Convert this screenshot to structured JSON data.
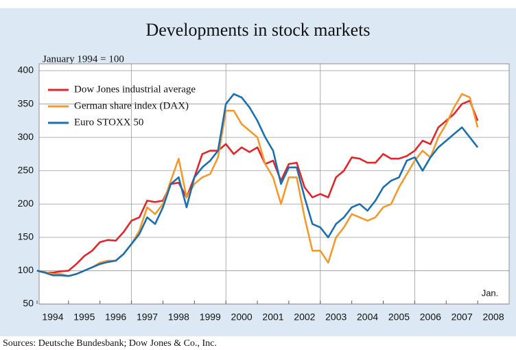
{
  "chart_data": {
    "type": "line",
    "title": "Developments in stock markets",
    "ylabel": "January 1994 = 100",
    "annotation": "Jan.",
    "source": "Sources: Deutsche Bundesbank; Dow Jones & Co., Inc.",
    "x": [
      1994,
      1994.25,
      1994.5,
      1994.75,
      1995,
      1995.25,
      1995.5,
      1995.75,
      1996,
      1996.25,
      1996.5,
      1996.75,
      1997,
      1997.25,
      1997.5,
      1997.75,
      1998,
      1998.25,
      1998.5,
      1998.75,
      1999,
      1999.25,
      1999.5,
      1999.75,
      2000,
      2000.25,
      2000.5,
      2000.75,
      2001,
      2001.25,
      2001.5,
      2001.75,
      2002,
      2002.25,
      2002.5,
      2002.75,
      2003,
      2003.25,
      2003.5,
      2003.75,
      2004,
      2004.25,
      2004.5,
      2004.75,
      2005,
      2005.25,
      2005.5,
      2005.75,
      2006,
      2006.25,
      2006.5,
      2006.75,
      2007,
      2007.25,
      2007.5,
      2007.75,
      2008
    ],
    "series": [
      {
        "name": "Dow Jones industrial average",
        "color": "#e0262b",
        "values": [
          100,
          97,
          97,
          99,
          100,
          110,
          122,
          130,
          143,
          146,
          145,
          158,
          175,
          180,
          205,
          203,
          205,
          230,
          232,
          210,
          240,
          275,
          280,
          280,
          290,
          275,
          285,
          278,
          285,
          260,
          265,
          235,
          260,
          262,
          225,
          210,
          215,
          210,
          240,
          250,
          270,
          268,
          262,
          262,
          275,
          268,
          268,
          272,
          280,
          295,
          290,
          315,
          325,
          335,
          350,
          355,
          325
        ]
      },
      {
        "name": "German share index (DAX)",
        "color": "#f29a2e",
        "values": [
          100,
          98,
          95,
          95,
          92,
          95,
          100,
          105,
          112,
          115,
          115,
          125,
          140,
          160,
          195,
          185,
          200,
          235,
          268,
          210,
          230,
          240,
          245,
          270,
          340,
          340,
          320,
          310,
          300,
          260,
          240,
          200,
          240,
          240,
          180,
          130,
          130,
          112,
          150,
          165,
          185,
          180,
          175,
          180,
          195,
          200,
          225,
          245,
          265,
          280,
          270,
          300,
          320,
          345,
          365,
          360,
          315
        ]
      },
      {
        "name": "Euro STOXX 50",
        "color": "#1a6fae",
        "values": [
          100,
          97,
          93,
          93,
          92,
          95,
          100,
          105,
          110,
          113,
          115,
          125,
          140,
          155,
          180,
          170,
          195,
          230,
          240,
          195,
          240,
          255,
          265,
          280,
          350,
          365,
          360,
          345,
          325,
          300,
          280,
          230,
          255,
          255,
          210,
          170,
          165,
          150,
          170,
          180,
          195,
          200,
          190,
          205,
          225,
          235,
          240,
          265,
          270,
          250,
          270,
          285,
          295,
          305,
          315,
          300,
          285
        ]
      }
    ],
    "xlim": [
      1994,
      2009
    ],
    "xticks": [
      1994,
      1995,
      1996,
      1997,
      1998,
      1999,
      2000,
      2001,
      2002,
      2003,
      2004,
      2005,
      2006,
      2007,
      2008
    ],
    "x_gridlines": [
      1997,
      2000,
      2003,
      2006
    ],
    "ylim": [
      50,
      400
    ],
    "yticks": [
      50,
      100,
      150,
      200,
      250,
      300,
      350,
      400
    ],
    "grid": true,
    "legend": "upper left"
  }
}
